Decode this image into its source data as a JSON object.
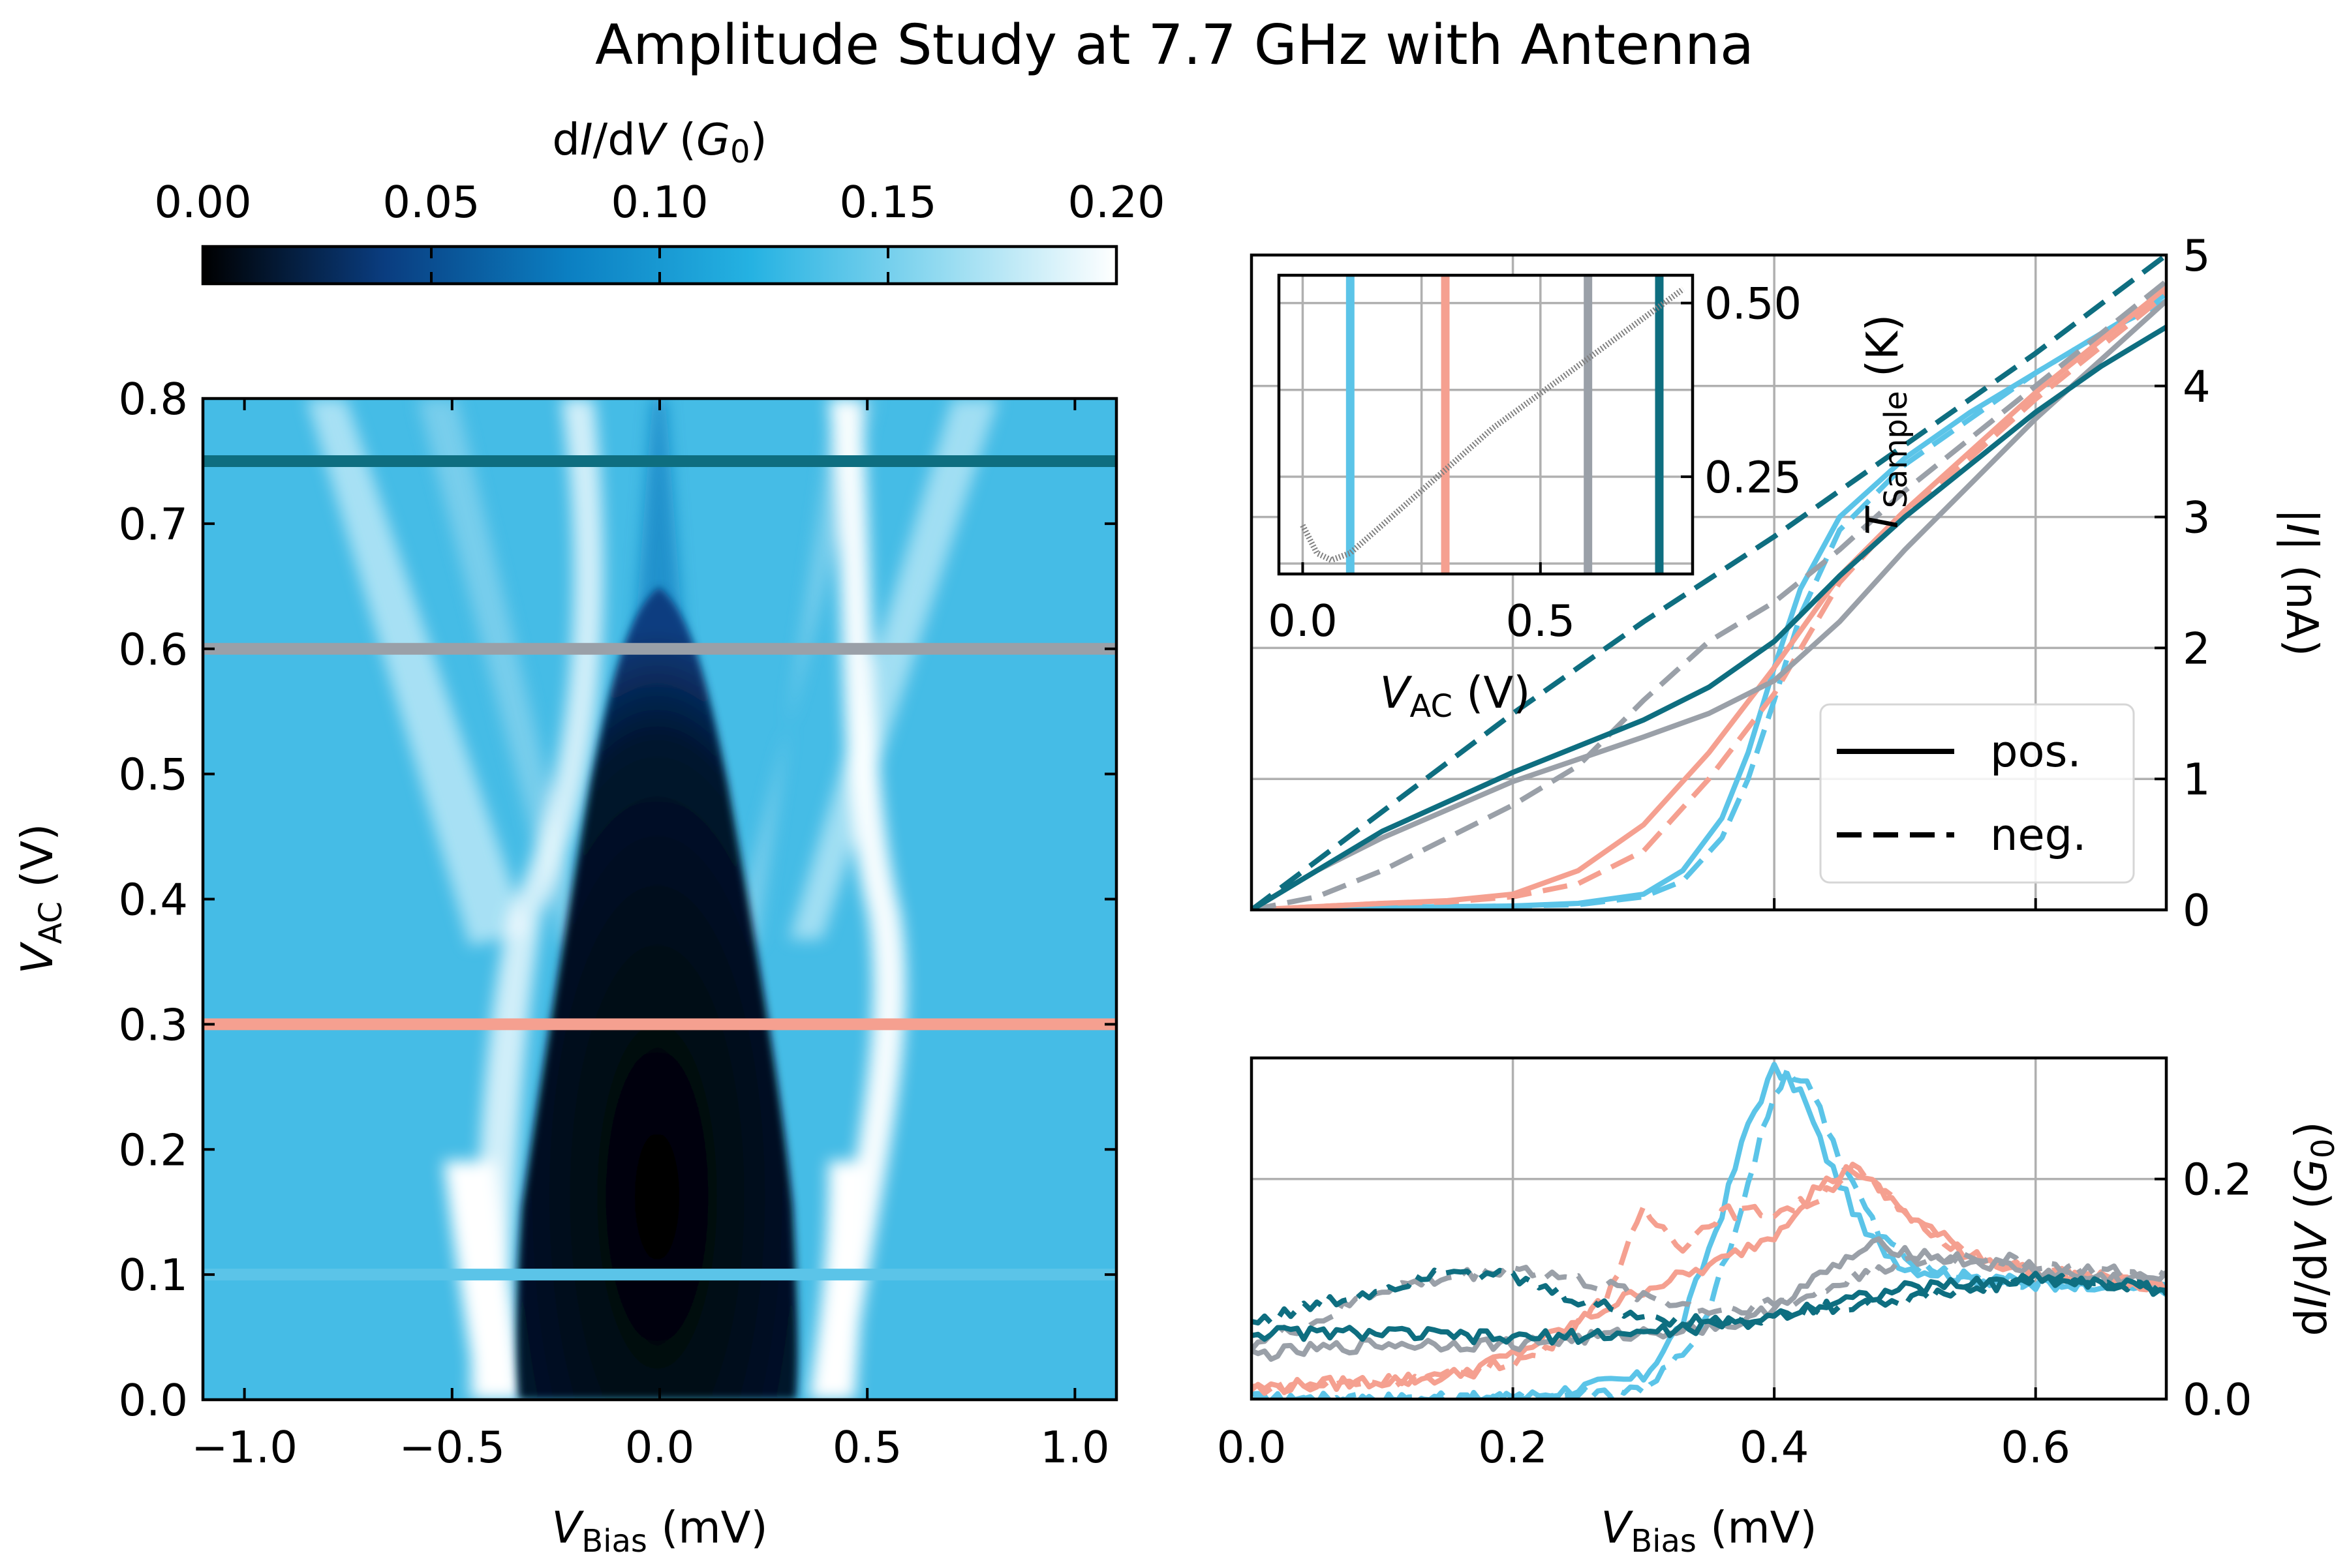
{
  "title": "Amplitude Study at 7.7 GHz with Antenna",
  "colors": {
    "c1": "#5bc4e8",
    "c2": "#f5a090",
    "c3": "#9aa0a8",
    "c4": "#0e6e80",
    "inset_line": "#7f7f7f"
  },
  "chart_data": [
    {
      "id": "colormap",
      "type": "heatmap",
      "xlabel": "V_Bias (mV)",
      "ylabel": "V_AC (V)",
      "xlim": [
        -1.1,
        1.1
      ],
      "ylim": [
        0.0,
        0.8
      ],
      "xticks": [
        "−1.0",
        "−0.5",
        "0.0",
        "0.5",
        "1.0"
      ],
      "yticks": [
        "0.0",
        "0.1",
        "0.2",
        "0.3",
        "0.4",
        "0.5",
        "0.6",
        "0.7",
        "0.8"
      ],
      "colorbar": {
        "label": "dI/dV (G0)",
        "range": [
          0.0,
          0.2
        ],
        "ticks": [
          "0.00",
          "0.05",
          "0.10",
          "0.15",
          "0.20"
        ],
        "colors": [
          "#000000",
          "#0a3d80",
          "#0b7fc2",
          "#25b2e2",
          "#8fd9f0",
          "#ffffff"
        ]
      },
      "cuts": [
        {
          "vac": 0.1,
          "color_key": "c1"
        },
        {
          "vac": 0.3,
          "color_key": "c2"
        },
        {
          "vac": 0.6,
          "color_key": "c3"
        },
        {
          "vac": 0.75,
          "color_key": "c4"
        }
      ]
    },
    {
      "id": "current",
      "type": "line",
      "ylabel": "|I| (nA)",
      "xlim": [
        0.0,
        0.7
      ],
      "ylim": [
        0,
        5
      ],
      "yticks": [
        "0",
        "1",
        "2",
        "3",
        "4",
        "5"
      ],
      "legend": {
        "placement": "lower-right",
        "entries": [
          "pos.",
          "neg."
        ]
      },
      "series": [
        {
          "vac": 0.1,
          "color_key": "c1",
          "style": "solid",
          "x": [
            0.0,
            0.1,
            0.2,
            0.25,
            0.3,
            0.33,
            0.36,
            0.38,
            0.4,
            0.42,
            0.45,
            0.5,
            0.55,
            0.6,
            0.65,
            0.7
          ],
          "y": [
            0.0,
            0.02,
            0.03,
            0.05,
            0.12,
            0.3,
            0.7,
            1.2,
            1.85,
            2.45,
            3.0,
            3.45,
            3.8,
            4.1,
            4.4,
            4.7
          ]
        },
        {
          "vac": 0.1,
          "color_key": "c1",
          "style": "dashed",
          "x": [
            0.0,
            0.1,
            0.2,
            0.25,
            0.3,
            0.33,
            0.36,
            0.38,
            0.4,
            0.42,
            0.45,
            0.5,
            0.55,
            0.6,
            0.65,
            0.7
          ],
          "y": [
            0.0,
            0.02,
            0.03,
            0.04,
            0.1,
            0.22,
            0.55,
            1.0,
            1.6,
            2.25,
            2.9,
            3.4,
            3.75,
            4.1,
            4.4,
            4.65
          ]
        },
        {
          "vac": 0.3,
          "color_key": "c2",
          "style": "solid",
          "x": [
            0.0,
            0.1,
            0.15,
            0.2,
            0.25,
            0.3,
            0.35,
            0.4,
            0.45,
            0.5,
            0.55,
            0.6,
            0.65,
            0.7
          ],
          "y": [
            0.0,
            0.05,
            0.07,
            0.12,
            0.3,
            0.65,
            1.2,
            1.85,
            2.55,
            3.05,
            3.5,
            3.95,
            4.35,
            4.75
          ]
        },
        {
          "vac": 0.3,
          "color_key": "c2",
          "style": "dashed",
          "x": [
            0.0,
            0.1,
            0.15,
            0.2,
            0.25,
            0.3,
            0.35,
            0.4,
            0.45,
            0.5,
            0.55,
            0.6,
            0.65,
            0.7
          ],
          "y": [
            0.0,
            0.05,
            0.06,
            0.1,
            0.2,
            0.45,
            1.0,
            1.65,
            2.5,
            3.05,
            3.45,
            3.9,
            4.3,
            4.7
          ]
        },
        {
          "vac": 0.6,
          "color_key": "c3",
          "style": "solid",
          "x": [
            0.0,
            0.05,
            0.1,
            0.2,
            0.3,
            0.35,
            0.4,
            0.45,
            0.5,
            0.55,
            0.6,
            0.65,
            0.7
          ],
          "y": [
            0.0,
            0.3,
            0.55,
            0.98,
            1.32,
            1.5,
            1.75,
            2.2,
            2.75,
            3.25,
            3.75,
            4.2,
            4.65
          ]
        },
        {
          "vac": 0.6,
          "color_key": "c3",
          "style": "dashed",
          "x": [
            0.0,
            0.05,
            0.1,
            0.15,
            0.2,
            0.25,
            0.3,
            0.35,
            0.4,
            0.45,
            0.5,
            0.55,
            0.6,
            0.65,
            0.7
          ],
          "y": [
            0.0,
            0.1,
            0.3,
            0.55,
            0.8,
            1.1,
            1.6,
            2.05,
            2.35,
            2.75,
            3.2,
            3.6,
            4.0,
            4.4,
            4.8
          ]
        },
        {
          "vac": 0.75,
          "color_key": "c4",
          "style": "solid",
          "x": [
            0.0,
            0.05,
            0.1,
            0.2,
            0.3,
            0.35,
            0.4,
            0.45,
            0.5,
            0.55,
            0.6,
            0.65,
            0.7
          ],
          "y": [
            0.0,
            0.3,
            0.6,
            1.05,
            1.45,
            1.7,
            2.05,
            2.55,
            3.0,
            3.4,
            3.8,
            4.15,
            4.45
          ]
        },
        {
          "vac": 0.75,
          "color_key": "c4",
          "style": "dashed",
          "x": [
            0.0,
            0.1,
            0.2,
            0.3,
            0.4,
            0.5,
            0.6,
            0.7
          ],
          "y": [
            0.0,
            0.75,
            1.5,
            2.2,
            2.85,
            3.55,
            4.25,
            5.0
          ]
        }
      ]
    },
    {
      "id": "inset",
      "type": "line",
      "xlabel": "V_AC (V)",
      "ylabel": "T_Sample (K)",
      "xlim": [
        -0.05,
        0.82
      ],
      "ylim": [
        0.11,
        0.54
      ],
      "xticks": [
        "0.0",
        "0.5"
      ],
      "yticks": [
        "0.25",
        "0.50"
      ],
      "series": [
        {
          "color_key": "inset_line",
          "x": [
            0.0,
            0.03,
            0.06,
            0.1,
            0.15,
            0.2,
            0.3,
            0.4,
            0.5,
            0.6,
            0.7,
            0.8
          ],
          "y": [
            0.18,
            0.14,
            0.13,
            0.14,
            0.17,
            0.2,
            0.26,
            0.32,
            0.37,
            0.42,
            0.47,
            0.52
          ]
        }
      ],
      "markers": [
        {
          "vac": 0.1,
          "color_key": "c1"
        },
        {
          "vac": 0.3,
          "color_key": "c2"
        },
        {
          "vac": 0.6,
          "color_key": "c3"
        },
        {
          "vac": 0.75,
          "color_key": "c4"
        }
      ]
    },
    {
      "id": "didv",
      "type": "line",
      "xlabel": "V_Bias (mV)",
      "ylabel": "dI/dV (G0)",
      "xlim": [
        0.0,
        0.7
      ],
      "ylim": [
        0.0,
        0.31
      ],
      "xticks": [
        "0.0",
        "0.2",
        "0.4",
        "0.6"
      ],
      "yticks": [
        "0.0",
        "0.2"
      ],
      "series": [
        {
          "vac": 0.1,
          "color_key": "c1",
          "style": "solid",
          "x": [
            0.0,
            0.2,
            0.3,
            0.33,
            0.36,
            0.38,
            0.4,
            0.42,
            0.44,
            0.47,
            0.5,
            0.55,
            0.6,
            0.65,
            0.7
          ],
          "y": [
            0.0,
            0.0,
            0.02,
            0.07,
            0.17,
            0.25,
            0.3,
            0.28,
            0.22,
            0.15,
            0.12,
            0.11,
            0.105,
            0.105,
            0.1
          ]
        },
        {
          "vac": 0.1,
          "color_key": "c1",
          "style": "dashed",
          "x": [
            0.0,
            0.2,
            0.3,
            0.34,
            0.37,
            0.39,
            0.41,
            0.43,
            0.45,
            0.48,
            0.51,
            0.55,
            0.6,
            0.65,
            0.7
          ],
          "y": [
            0.0,
            0.0,
            0.01,
            0.05,
            0.15,
            0.24,
            0.3,
            0.28,
            0.22,
            0.15,
            0.12,
            0.11,
            0.105,
            0.105,
            0.1
          ]
        },
        {
          "vac": 0.3,
          "color_key": "c2",
          "style": "solid",
          "x": [
            0.0,
            0.15,
            0.2,
            0.25,
            0.3,
            0.35,
            0.4,
            0.43,
            0.46,
            0.5,
            0.55,
            0.6,
            0.65,
            0.7
          ],
          "y": [
            0.01,
            0.02,
            0.04,
            0.07,
            0.1,
            0.12,
            0.15,
            0.19,
            0.21,
            0.17,
            0.13,
            0.115,
            0.11,
            0.1
          ]
        },
        {
          "vac": 0.3,
          "color_key": "c2",
          "style": "dashed",
          "x": [
            0.0,
            0.15,
            0.22,
            0.27,
            0.3,
            0.33,
            0.36,
            0.4,
            0.43,
            0.46,
            0.5,
            0.55,
            0.6,
            0.65,
            0.7
          ],
          "y": [
            0.01,
            0.02,
            0.04,
            0.09,
            0.17,
            0.14,
            0.17,
            0.17,
            0.18,
            0.21,
            0.17,
            0.13,
            0.115,
            0.11,
            0.1
          ]
        },
        {
          "vac": 0.6,
          "color_key": "c3",
          "style": "solid",
          "x": [
            0.0,
            0.1,
            0.2,
            0.3,
            0.38,
            0.42,
            0.46,
            0.48,
            0.52,
            0.58,
            0.64,
            0.7
          ],
          "y": [
            0.04,
            0.05,
            0.05,
            0.06,
            0.07,
            0.1,
            0.13,
            0.14,
            0.13,
            0.12,
            0.11,
            0.11
          ]
        },
        {
          "vac": 0.6,
          "color_key": "c3",
          "style": "dashed",
          "x": [
            0.0,
            0.05,
            0.1,
            0.15,
            0.2,
            0.28,
            0.35,
            0.42,
            0.48,
            0.55,
            0.62,
            0.7
          ],
          "y": [
            0.05,
            0.07,
            0.1,
            0.11,
            0.12,
            0.1,
            0.08,
            0.09,
            0.12,
            0.13,
            0.12,
            0.11
          ]
        },
        {
          "vac": 0.75,
          "color_key": "c4",
          "style": "solid",
          "x": [
            0.0,
            0.1,
            0.2,
            0.3,
            0.38,
            0.45,
            0.5,
            0.55,
            0.6,
            0.65,
            0.7
          ],
          "y": [
            0.06,
            0.06,
            0.055,
            0.06,
            0.07,
            0.09,
            0.1,
            0.105,
            0.11,
            0.105,
            0.1
          ]
        },
        {
          "vac": 0.75,
          "color_key": "c4",
          "style": "dashed",
          "x": [
            0.0,
            0.05,
            0.1,
            0.15,
            0.2,
            0.25,
            0.3,
            0.35,
            0.4,
            0.45,
            0.5,
            0.55,
            0.6,
            0.65,
            0.7
          ],
          "y": [
            0.07,
            0.085,
            0.1,
            0.12,
            0.11,
            0.09,
            0.075,
            0.07,
            0.075,
            0.085,
            0.09,
            0.1,
            0.11,
            0.105,
            0.1
          ]
        }
      ]
    }
  ]
}
